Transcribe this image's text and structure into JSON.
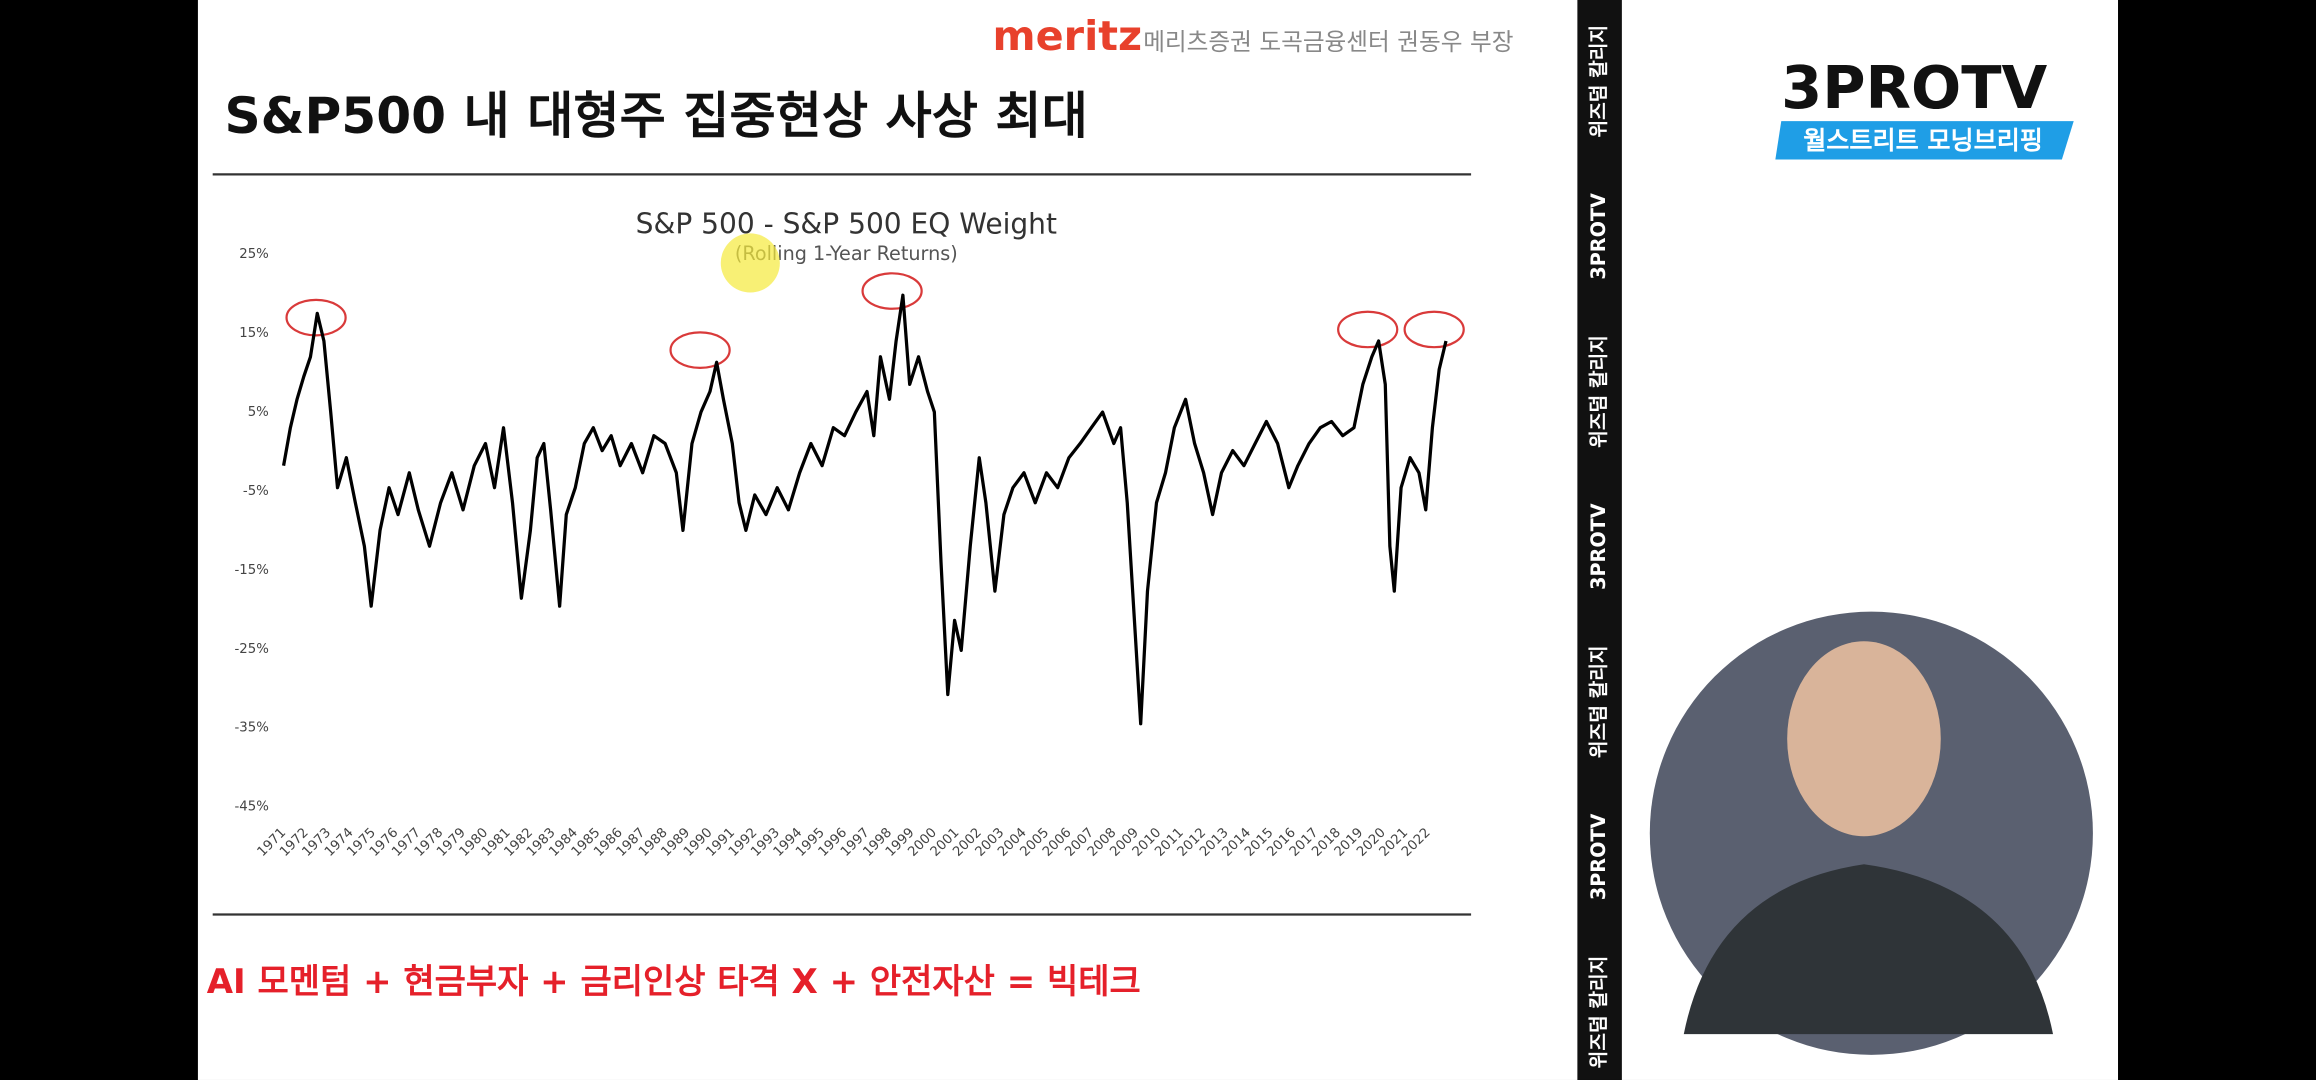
{
  "header": {
    "brand": "meritz",
    "presenter": "메리츠증권 도곡금융센터 권동우 부장"
  },
  "slide": {
    "title": "S&P500 내 대형주 집중현상 사상 최대",
    "footnote": "AI 모멘텀 + 현금부자 + 금리인상 타격 X + 안전자산 = 빅테크"
  },
  "channel": {
    "logo": "3PROTV",
    "program": "월스트리트 모닝브리핑"
  },
  "ticker": [
    "위즈덤 칼리지",
    "3PROTV",
    "위즈덤 칼리지",
    "3PROTV",
    "위즈덤 칼리지",
    "3PROTV",
    "위즈덤 칼리지"
  ],
  "chart_data": {
    "type": "line",
    "title": "S&P 500 - S&P 500 EQ Weight",
    "subtitle": "(Rolling 1-Year Returns)",
    "color": "#000000",
    "x": [
      1971.0,
      1971.3,
      1971.6,
      1971.9,
      1972.2,
      1972.5,
      1972.8,
      1973.1,
      1973.4,
      1973.8,
      1974.2,
      1974.6,
      1974.9,
      1975.3,
      1975.7,
      1976.1,
      1976.6,
      1977.0,
      1977.5,
      1978.0,
      1978.5,
      1979.0,
      1979.5,
      1980.0,
      1980.4,
      1980.8,
      1981.2,
      1981.6,
      1982.0,
      1982.3,
      1982.6,
      1982.9,
      1983.3,
      1983.6,
      1984.0,
      1984.4,
      1984.8,
      1985.2,
      1985.6,
      1986.0,
      1986.5,
      1987.0,
      1987.5,
      1988.0,
      1988.5,
      1988.8,
      1989.2,
      1989.6,
      1990.0,
      1990.3,
      1990.6,
      1991.0,
      1991.3,
      1991.6,
      1992.0,
      1992.5,
      1993.0,
      1993.5,
      1994.0,
      1994.5,
      1995.0,
      1995.5,
      1996.0,
      1996.5,
      1997.0,
      1997.3,
      1997.6,
      1998.0,
      1998.3,
      1998.6,
      1998.9,
      1999.3,
      1999.7,
      2000.0,
      2000.3,
      2000.6,
      2000.9,
      2001.2,
      2001.6,
      2002.0,
      2002.3,
      2002.7,
      2003.1,
      2003.5,
      2004.0,
      2004.5,
      2005.0,
      2005.5,
      2006.0,
      2006.5,
      2007.0,
      2007.5,
      2008.0,
      2008.3,
      2008.6,
      2009.0,
      2009.2,
      2009.5,
      2009.9,
      2010.3,
      2010.7,
      2011.2,
      2011.6,
      2012.0,
      2012.4,
      2012.8,
      2013.3,
      2013.8,
      2014.3,
      2014.8,
      2015.3,
      2015.8,
      2016.2,
      2016.7,
      2017.2,
      2017.7,
      2018.2,
      2018.7,
      2019.1,
      2019.5,
      2019.8,
      2020.1,
      2020.3,
      2020.5,
      2020.8,
      2021.2,
      2021.6,
      2021.9,
      2022.2,
      2022.5,
      2022.8
    ],
    "values": [
      -1.8,
      3,
      6.6,
      9.5,
      12,
      17.5,
      14,
      5,
      -4.6,
      -0.8,
      -6.5,
      -12,
      -19.6,
      -10,
      -4.6,
      -8,
      -2.7,
      -7.4,
      -12,
      -6.5,
      -2.7,
      -7.4,
      -1.8,
      1,
      -4.6,
      3,
      -6.5,
      -18.6,
      -10,
      -0.8,
      1,
      -7.4,
      -19.6,
      -8,
      -4.6,
      1,
      3,
      0.1,
      2,
      -1.8,
      1,
      -2.7,
      2,
      1,
      -2.7,
      -10,
      1,
      5,
      7.6,
      11.3,
      6.6,
      1,
      -6.5,
      -10,
      -5.5,
      -8,
      -4.6,
      -7.4,
      -2.7,
      1,
      -1.8,
      3,
      2,
      5,
      7.6,
      2,
      12,
      6.6,
      14,
      19.8,
      8.5,
      12,
      7.6,
      5,
      -14,
      -30.8,
      -21.4,
      -25.2,
      -12,
      -0.8,
      -6.5,
      -17.7,
      -8,
      -4.6,
      -2.7,
      -6.5,
      -2.7,
      -4.6,
      -0.8,
      1,
      3,
      5,
      1,
      3,
      -6.5,
      -25.2,
      -34.5,
      -17.7,
      -6.5,
      -2.7,
      3,
      6.6,
      1,
      -2.7,
      -8,
      -2.7,
      0.1,
      -1.8,
      1,
      3.8,
      1,
      -4.6,
      -1.8,
      1,
      3,
      3.8,
      2,
      3,
      8.5,
      12,
      14,
      8.5,
      -12,
      -17.7,
      -4.6,
      -0.8,
      -2.7,
      -7.4,
      3,
      10.4,
      14
    ],
    "xlim": [
      1971,
      2023
    ],
    "ylim": [
      -45,
      25
    ],
    "xticks": [
      1971,
      1972,
      1973,
      1974,
      1975,
      1976,
      1977,
      1978,
      1979,
      1980,
      1981,
      1982,
      1983,
      1984,
      1985,
      1986,
      1987,
      1988,
      1989,
      1990,
      1991,
      1992,
      1993,
      1994,
      1995,
      1996,
      1997,
      1998,
      1999,
      2000,
      2001,
      2002,
      2003,
      2004,
      2005,
      2006,
      2007,
      2008,
      2009,
      2010,
      2011,
      2012,
      2013,
      2014,
      2015,
      2016,
      2017,
      2018,
      2019,
      2020,
      2021,
      2022
    ],
    "yticks": [
      {
        "value": 25,
        "label": "25%"
      },
      {
        "value": 15,
        "label": "15%"
      },
      {
        "value": 5,
        "label": "5%"
      },
      {
        "value": -5,
        "label": "-5%"
      },
      {
        "value": -15,
        "label": "-15%"
      },
      {
        "value": -25,
        "label": "-25%"
      },
      {
        "value": -35,
        "label": "-35%"
      },
      {
        "value": -45,
        "label": "-45%"
      }
    ]
  }
}
